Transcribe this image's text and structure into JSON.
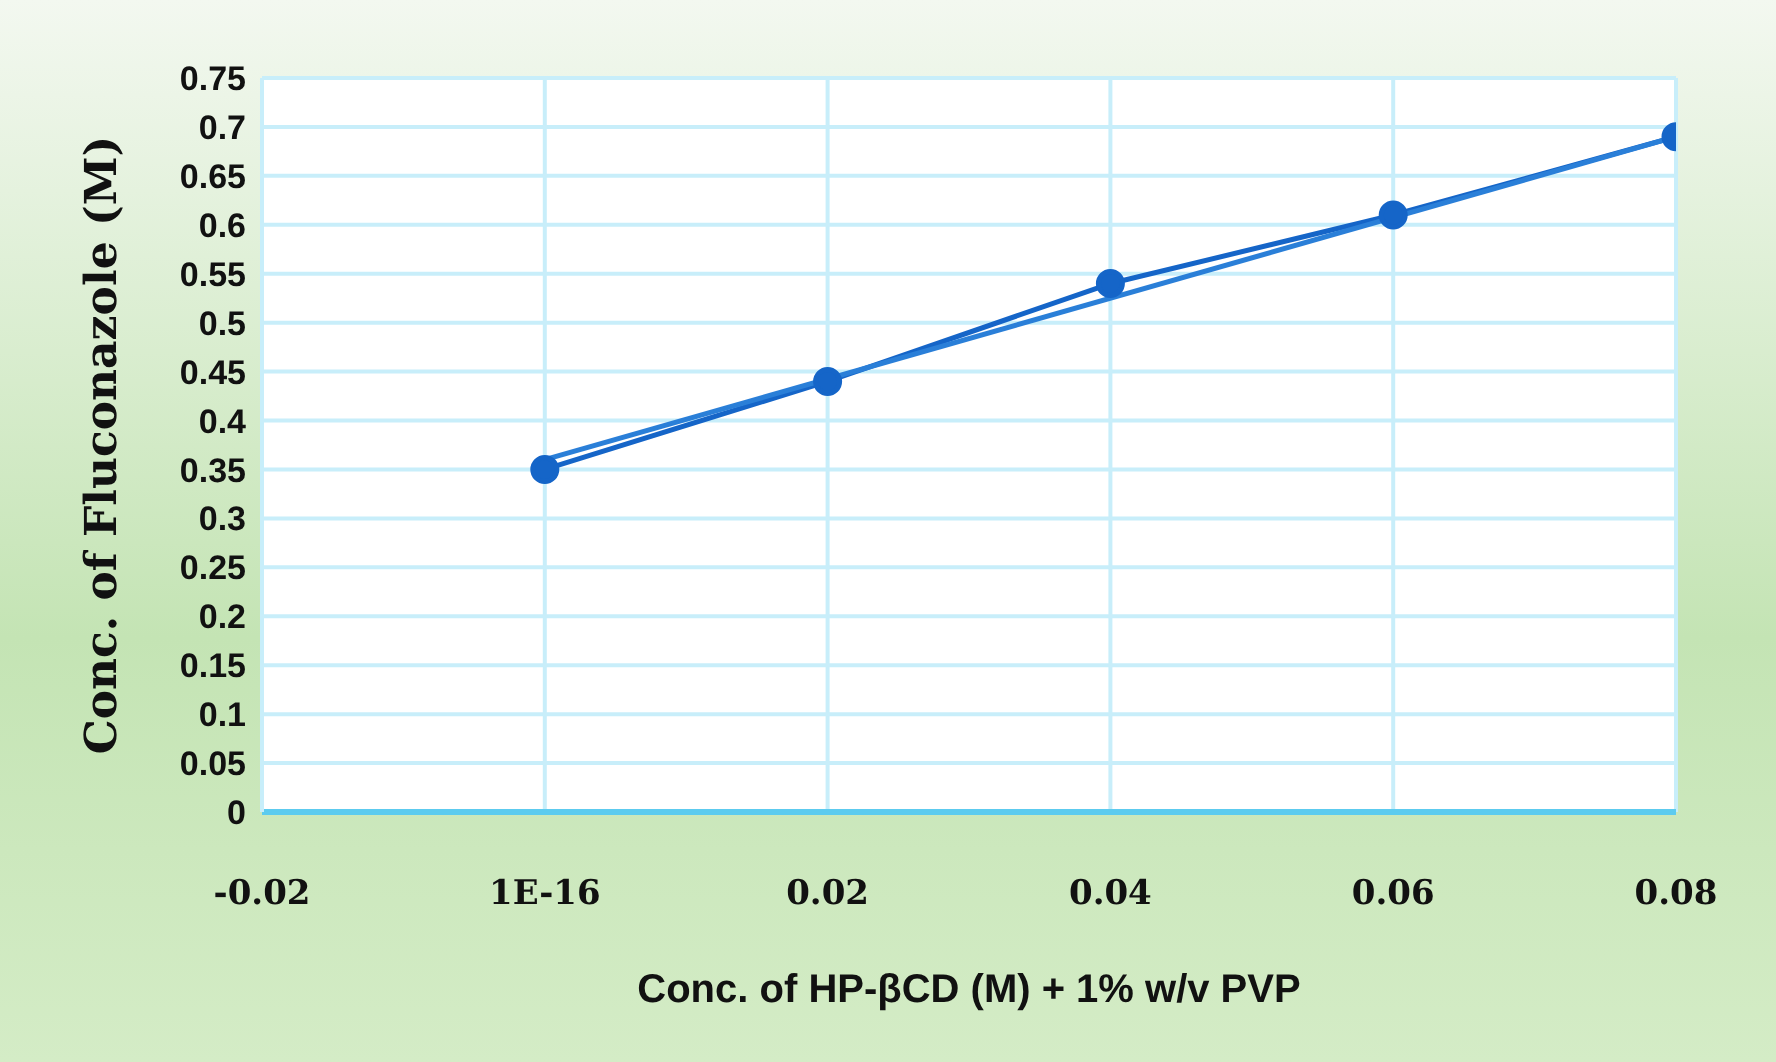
{
  "chart_data": {
    "type": "line",
    "xlabel": "Conc. of HP-βCD (M) + 1% w/v PVP",
    "ylabel": "Conc. of Fluconazole (M)",
    "x": [
      0,
      0.02,
      0.04,
      0.06,
      0.08
    ],
    "series": [
      {
        "color": "#1565c8",
        "values": [
          0.35,
          0.44,
          0.54,
          0.61,
          0.69
        ],
        "marker": "circle"
      },
      {
        "type": "line",
        "color": "#2a7fd8",
        "x": [
          0,
          0.08
        ],
        "values": [
          0.36,
          0.69
        ],
        "marker": "none"
      }
    ],
    "xlim": [
      -0.02,
      0.08
    ],
    "xticks": [
      -0.02,
      {
        "value": 0,
        "label": "1E-16"
      },
      0.02,
      0.04,
      0.06,
      0.08
    ],
    "ylim": [
      0,
      0.75
    ],
    "yticks": [
      0,
      0.05,
      0.1,
      0.15,
      0.2,
      0.25,
      0.3,
      0.35,
      0.4,
      0.45,
      0.5,
      0.55,
      0.6,
      0.65,
      0.7,
      0.75
    ],
    "grid": true,
    "line_style": "solid"
  }
}
